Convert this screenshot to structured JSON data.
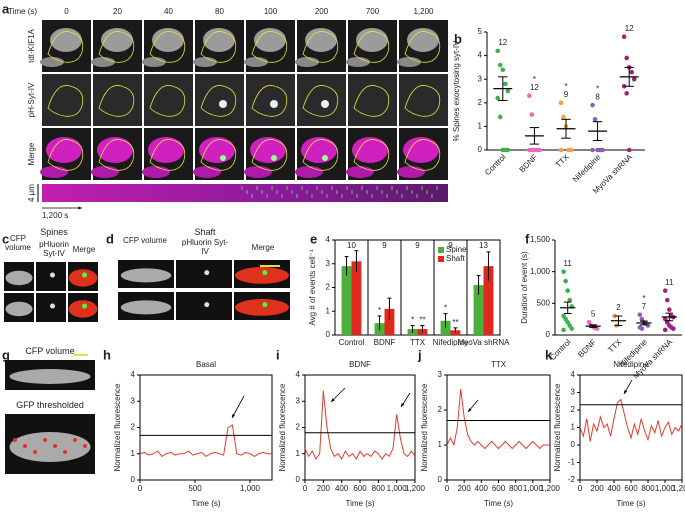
{
  "panel_labels": [
    "a",
    "b",
    "c",
    "d",
    "e",
    "f",
    "g",
    "h",
    "i",
    "j",
    "k"
  ],
  "panel_a": {
    "time_label": "Time (s)",
    "times": [
      "0",
      "20",
      "40",
      "80",
      "100",
      "200",
      "700",
      "1,200"
    ],
    "rows": [
      "tdt-KIF1A",
      "pH-Syt-IV",
      "Merge"
    ],
    "scale_label": "4 µm",
    "kymo_label": "1,200 s"
  },
  "panel_c": {
    "cfp": "CFP volume",
    "group": "Spines",
    "ph": "pHluorin Syt-IV",
    "merge": "Merge"
  },
  "panel_d": {
    "cfp": "CFP volume",
    "group": "Shaft",
    "ph": "pHluorin Syt-IV",
    "merge": "Merge"
  },
  "panel_g": {
    "top": "CFP volume",
    "bottom": "GFP thresholded"
  },
  "chart_data": [
    {
      "type": "strip",
      "ylabel": "% Spines exocytosing syt-IV",
      "categories": [
        "Control",
        "BDNF",
        "TTX",
        "Nifedipine",
        "MyoVa shRNA"
      ],
      "ylim": [
        0,
        5
      ],
      "yticks": [
        0,
        1,
        2,
        3,
        4,
        5
      ],
      "groups": [
        {
          "color": "#3cb04a",
          "points": [
            4.2,
            3.6,
            3.4,
            2.8,
            2.5,
            2.2,
            1.4,
            0,
            0,
            0
          ],
          "mean": 2.6,
          "sem": 0.5,
          "n": 12
        },
        {
          "color": "#e86bb5",
          "points": [
            2.3,
            1.5,
            0,
            0,
            0,
            0,
            0
          ],
          "mean": 0.6,
          "sem": 0.35,
          "n": 12,
          "sig": "*"
        },
        {
          "color": "#f4a142",
          "points": [
            2.0,
            1.4,
            1.0,
            0,
            0,
            0
          ],
          "mean": 0.9,
          "sem": 0.4,
          "n": 9,
          "sig": "*"
        },
        {
          "color": "#8b5fb3",
          "points": [
            1.9,
            1.3,
            0,
            0,
            0,
            0
          ],
          "mean": 0.8,
          "sem": 0.4,
          "n": 8,
          "sig": "*"
        },
        {
          "color": "#a2217e",
          "points": [
            4.8,
            3.9,
            3.5,
            3.3,
            3.0,
            2.7,
            2.4,
            0
          ],
          "mean": 3.1,
          "sem": 0.4,
          "n": 12
        }
      ]
    },
    {
      "type": "grouped-bar",
      "ylabel": "Avg # of events cell⁻¹",
      "categories": [
        "Control",
        "BDNF",
        "TTX",
        "Nifedipine",
        "MyoVa shRNA"
      ],
      "ylim": [
        0,
        4
      ],
      "yticks": [
        0,
        1,
        2,
        3,
        4
      ],
      "legend": "upper right",
      "series": [
        {
          "name": "Spine",
          "color": "#4caf3a",
          "values": [
            2.9,
            0.5,
            0.25,
            0.6,
            2.1
          ],
          "errors": [
            0.4,
            0.3,
            0.15,
            0.3,
            0.4
          ],
          "sig": [
            null,
            "*",
            "*",
            "*",
            null
          ]
        },
        {
          "name": "Shaft",
          "color": "#e0281e",
          "values": [
            3.1,
            1.1,
            0.25,
            0.2,
            2.9
          ],
          "errors": [
            0.45,
            0.45,
            0.15,
            0.1,
            0.6
          ],
          "sig": [
            null,
            null,
            "**",
            "**",
            null
          ]
        }
      ],
      "n": [
        10,
        9,
        9,
        9,
        13
      ]
    },
    {
      "type": "strip",
      "ylabel": "Duration of event (s)",
      "categories": [
        "Control",
        "BDNF",
        "TTX",
        "Nifedipine",
        "MyoVa shRNA"
      ],
      "ylim": [
        0,
        1500
      ],
      "yticks": [
        0,
        500,
        {
          "value": 1000,
          "label": "1,000"
        },
        {
          "value": 1500,
          "label": "1,500"
        }
      ],
      "groups": [
        {
          "color": "#3cb04a",
          "points": [
            1000,
            850,
            700,
            550,
            450,
            300,
            250,
            200,
            150,
            100,
            80
          ],
          "mean": 430,
          "sem": 90,
          "n": 11
        },
        {
          "color": "#e86bb5",
          "points": [
            200,
            150,
            130,
            110,
            100
          ],
          "mean": 140,
          "sem": 20,
          "n": 5
        },
        {
          "color": "#f4a142",
          "points": [
            300,
            150
          ],
          "mean": 225,
          "sem": 75,
          "n": 2
        },
        {
          "color": "#8b5fb3",
          "points": [
            320,
            250,
            200,
            180,
            150,
            120,
            100
          ],
          "mean": 190,
          "sem": 30,
          "n": 7,
          "sig": "*"
        },
        {
          "color": "#a2217e",
          "points": [
            700,
            550,
            400,
            300,
            280,
            250,
            200,
            150,
            120,
            100,
            80
          ],
          "mean": 285,
          "sem": 60,
          "n": 11
        }
      ]
    },
    {
      "type": "line",
      "title": "Basal",
      "xlabel": "Time (s)",
      "ylabel": "Normalized fluorescence",
      "color": "#e03c31",
      "threshold": 1.7,
      "xlim": [
        0,
        1200
      ],
      "xticks": [
        0,
        500,
        {
          "value": 1000,
          "label": "1,000"
        }
      ],
      "ylim": [
        0,
        4
      ],
      "yticks": [
        0,
        1,
        2,
        3,
        4
      ],
      "x": [
        0,
        40,
        80,
        120,
        160,
        200,
        240,
        280,
        320,
        360,
        400,
        440,
        480,
        520,
        560,
        600,
        640,
        680,
        720,
        760,
        800,
        840,
        880,
        920,
        960,
        1000,
        1040,
        1080,
        1120,
        1160,
        1200
      ],
      "values": [
        1.0,
        1.05,
        0.95,
        1.0,
        1.1,
        0.9,
        1.0,
        1.05,
        0.95,
        1.0,
        1.0,
        1.1,
        0.95,
        1.0,
        1.05,
        0.9,
        1.0,
        1.05,
        1.0,
        0.95,
        2.0,
        2.1,
        1.0,
        0.95,
        1.05,
        1.0,
        0.9,
        1.0,
        1.05,
        1.0,
        1.0
      ]
    },
    {
      "type": "line",
      "title": "BDNF",
      "xlabel": "Time (s)",
      "ylabel": "Normalized fluorescence",
      "color": "#e03c31",
      "threshold": 1.8,
      "xlim": [
        0,
        1200
      ],
      "xticks": [
        0,
        200,
        400,
        600,
        800,
        {
          "value": 1000,
          "label": "1,000"
        },
        {
          "value": 1200,
          "label": "1,200"
        }
      ],
      "ylim": [
        0,
        4
      ],
      "yticks": [
        0,
        1,
        2,
        3,
        4
      ],
      "x": [
        0,
        40,
        80,
        120,
        160,
        200,
        240,
        280,
        320,
        360,
        400,
        440,
        480,
        520,
        560,
        600,
        640,
        680,
        720,
        760,
        800,
        840,
        880,
        920,
        960,
        1000,
        1040,
        1080,
        1120,
        1160,
        1200
      ],
      "values": [
        1.2,
        0.9,
        1.1,
        0.8,
        1.0,
        3.4,
        2.0,
        1.2,
        0.9,
        1.0,
        0.8,
        1.1,
        0.9,
        1.0,
        0.8,
        1.1,
        0.9,
        1.0,
        0.9,
        1.1,
        1.0,
        0.8,
        1.0,
        0.9,
        1.2,
        2.5,
        1.6,
        1.0,
        0.9,
        1.1,
        0.9
      ]
    },
    {
      "type": "line",
      "title": "TTX",
      "xlabel": "Time (s)",
      "ylabel": "Normalized fluorescence",
      "color": "#e03c31",
      "threshold": 1.7,
      "xlim": [
        0,
        1200
      ],
      "xticks": [
        0,
        200,
        400,
        600,
        800,
        {
          "value": 1000,
          "label": "1,000"
        },
        {
          "value": 1200,
          "label": "1,200"
        }
      ],
      "ylim": [
        0,
        3
      ],
      "yticks": [
        0,
        1,
        2,
        3
      ],
      "x": [
        0,
        40,
        80,
        120,
        160,
        200,
        240,
        280,
        320,
        360,
        400,
        440,
        480,
        520,
        560,
        600,
        640,
        680,
        720,
        760,
        800,
        840,
        880,
        920,
        960,
        1000,
        1040,
        1080,
        1120,
        1160,
        1200
      ],
      "values": [
        1.0,
        1.2,
        1.0,
        1.5,
        2.6,
        1.8,
        1.3,
        1.1,
        1.0,
        1.1,
        1.0,
        0.9,
        1.0,
        1.1,
        1.0,
        0.9,
        1.0,
        1.1,
        1.0,
        0.9,
        1.0,
        1.1,
        1.0,
        0.9,
        1.0,
        1.1,
        1.0,
        0.9,
        1.0,
        1.0,
        1.0
      ]
    },
    {
      "type": "line",
      "title": "Nifedipine",
      "xlabel": "Time (s)",
      "ylabel": "Normalized fluorescence",
      "color": "#e03c31",
      "threshold": 2.3,
      "xlim": [
        0,
        1200
      ],
      "xticks": [
        0,
        200,
        400,
        600,
        800,
        {
          "value": 1000,
          "label": "1,000"
        },
        {
          "value": 1200,
          "label": "1,200"
        }
      ],
      "ylim": [
        -2,
        4
      ],
      "yticks": [
        -2,
        -1,
        0,
        1,
        2,
        3,
        4
      ],
      "x": [
        0,
        40,
        80,
        120,
        160,
        200,
        240,
        280,
        320,
        360,
        400,
        440,
        480,
        520,
        560,
        600,
        640,
        680,
        720,
        760,
        800,
        840,
        880,
        920,
        960,
        1000,
        1040,
        1080,
        1120,
        1160,
        1200
      ],
      "values": [
        1.0,
        0.5,
        1.5,
        0.2,
        1.2,
        0.8,
        1.6,
        1.0,
        1.2,
        0.5,
        1.5,
        2.4,
        2.6,
        1.8,
        1.0,
        0.4,
        1.2,
        0.6,
        1.5,
        0.8,
        0.3,
        1.1,
        0.7,
        1.4,
        0.5,
        1.0,
        1.3,
        0.6,
        1.0,
        0.8,
        1.2
      ]
    }
  ]
}
